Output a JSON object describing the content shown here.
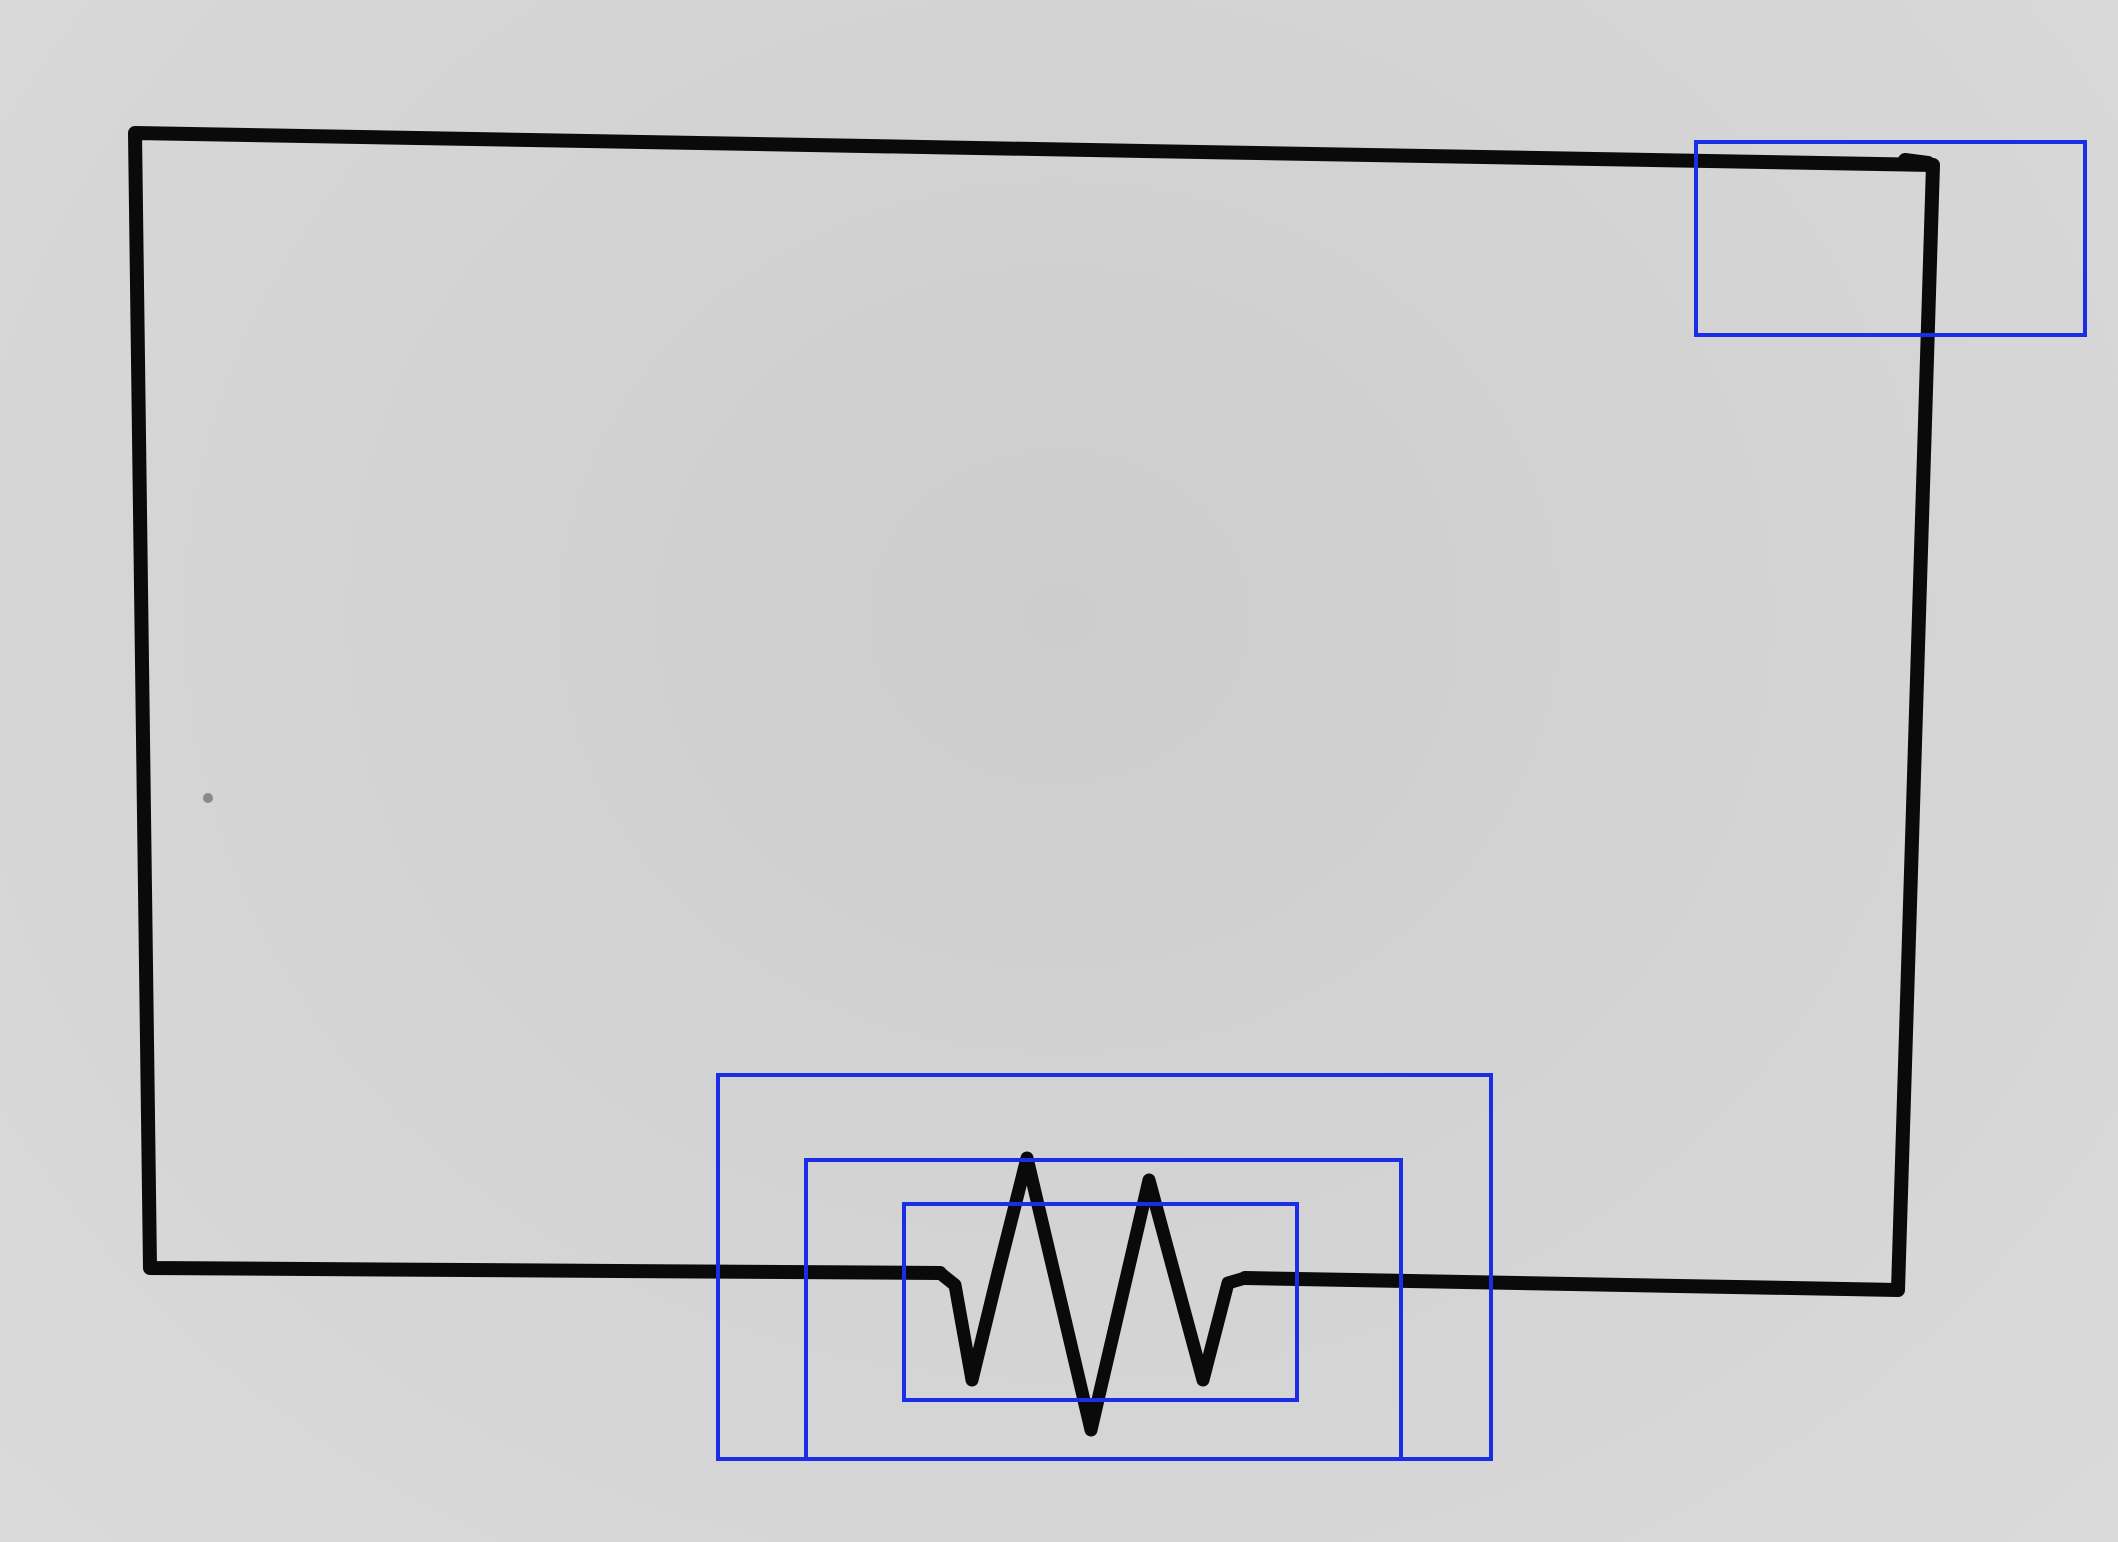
{
  "diagram": {
    "elements": [
      {
        "kind": "wire",
        "name": "circuit-loop"
      },
      {
        "kind": "resistor",
        "name": "resistor-symbol"
      }
    ],
    "annotation_boxes": [
      {
        "name": "corner-box"
      },
      {
        "name": "resistor-outer-box"
      },
      {
        "name": "resistor-middle-box"
      },
      {
        "name": "resistor-inner-box"
      }
    ],
    "colors": {
      "paper": "#d6d6d6",
      "ink": "#0a0a0a",
      "annotation": "#1a2ee6"
    }
  }
}
